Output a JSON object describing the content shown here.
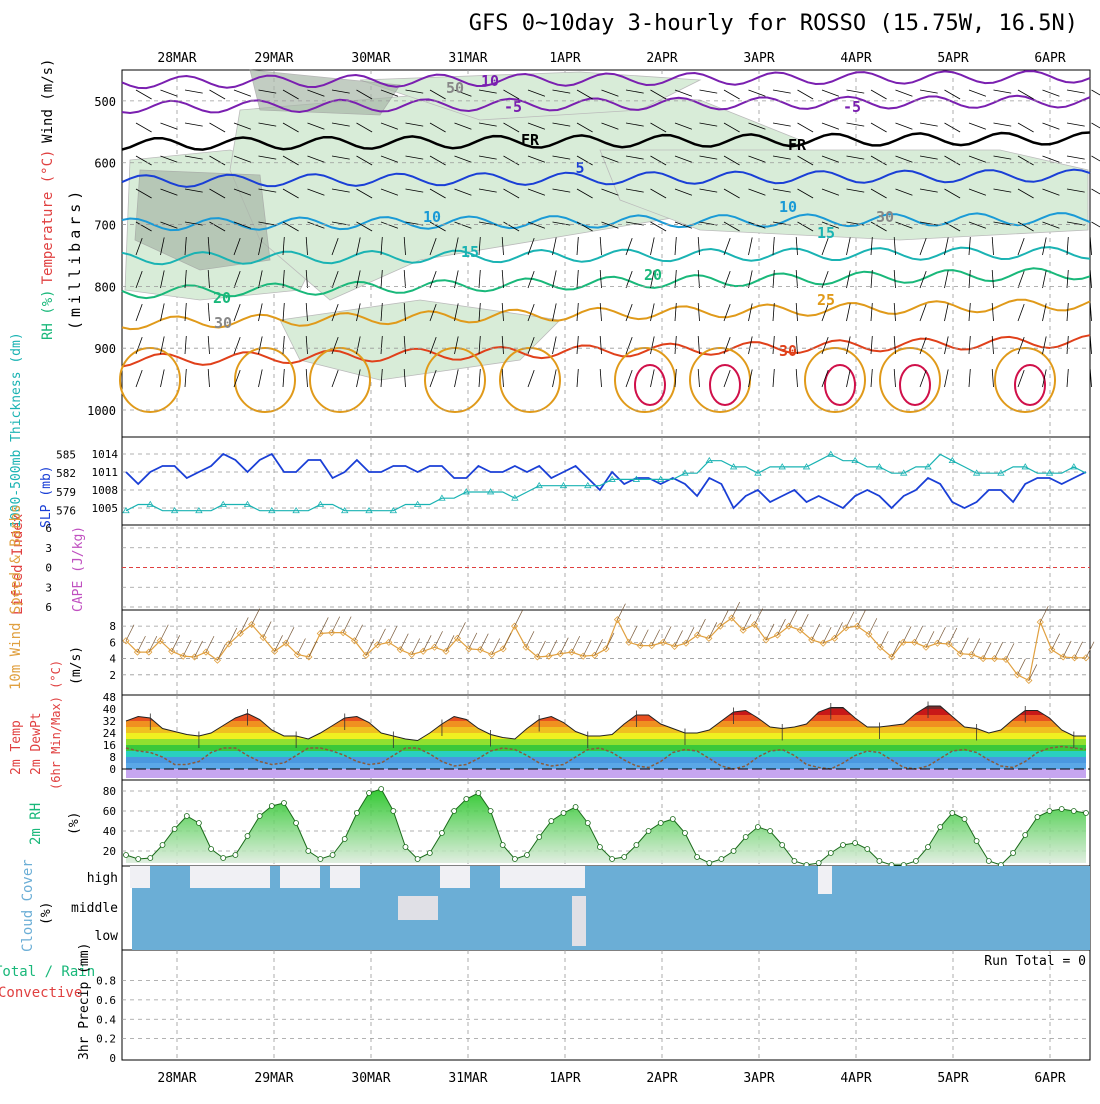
{
  "chart_data": {
    "title": "GFS 0~10day 3-hourly for ROSSO (15.75W, 16.5N)",
    "dates": [
      "28MAR",
      "29MAR",
      "30MAR",
      "31MAR",
      "1APR",
      "2APR",
      "3APR",
      "4APR",
      "5APR",
      "6APR"
    ],
    "colors": {
      "purple": "#7a1fb0",
      "black": "#000000",
      "blue": "#1a3fd6",
      "lightblue": "#1a9ad6",
      "teal": "#1ab3b3",
      "green": "#19b87a",
      "orange": "#e09a1a",
      "red": "#e0401a",
      "crimson": "#d0104a",
      "rh_fill": "#d8ecd8",
      "rh_dark": "#a9b8a9",
      "cloud": "#6baed6",
      "slp": "#1a3fd6",
      "thick": "#1ab3b3",
      "lifted": "#e04040",
      "wind10": "#e0a040"
    },
    "panels": [
      {
        "type": "line",
        "id": "upper_air",
        "ylabels": [
          {
            "text": "RH (%)",
            "color": "#19b87a"
          },
          {
            "text": "Temperature (°C)",
            "color": "#e04040"
          },
          {
            "text": "Wind (m/s)",
            "color": "#000000"
          },
          {
            "text": "(millibars)",
            "color": "#000000"
          }
        ],
        "yticks": [
          "500",
          "600",
          "700",
          "800",
          "900",
          "1000"
        ],
        "contour_labels": [
          "10",
          "-5",
          "-5",
          "FR",
          "FR",
          "5",
          "10",
          "10",
          "15",
          "15",
          "20",
          "20",
          "25",
          "30",
          "50",
          "30",
          "30"
        ],
        "isotherms": [
          {
            "label": "10",
            "level": 470
          },
          {
            "label": "-5",
            "level": 510
          },
          {
            "label": "FR",
            "level": 570
          },
          {
            "label": "5",
            "level": 630
          },
          {
            "label": "10",
            "level": 700
          },
          {
            "label": "15",
            "level": 755
          },
          {
            "label": "20",
            "level": 810
          },
          {
            "label": "25",
            "level": 860
          },
          {
            "label": "30",
            "level": 920
          }
        ]
      },
      {
        "type": "line",
        "id": "slp_thickness",
        "ylabels": [
          {
            "text": "1000-500mb Thickness (dm)",
            "color": "#1ab3b3"
          },
          {
            "text": "SLP (mb)",
            "color": "#1a3fd6"
          }
        ],
        "yticks_left": [
          "585",
          "582",
          "579",
          "576"
        ],
        "yticks_right": [
          "1014",
          "1011",
          "1008",
          "1005"
        ],
        "series": [
          {
            "name": "SLP",
            "values": [
              1011,
              1009,
              1011,
              1012,
              1012,
              1010,
              1011,
              1012,
              1014,
              1013,
              1011,
              1013,
              1014,
              1011,
              1011,
              1013,
              1013,
              1010,
              1011,
              1013,
              1011,
              1011,
              1012,
              1012,
              1011,
              1012,
              1012,
              1010,
              1010,
              1012,
              1011,
              1011,
              1012,
              1011,
              1012,
              1010,
              1011,
              1012,
              1010,
              1008,
              1011,
              1009,
              1010,
              1010,
              1009,
              1010,
              1009,
              1007,
              1010,
              1009,
              1005,
              1007,
              1008,
              1006,
              1007,
              1008,
              1006,
              1007,
              1006,
              1005,
              1007,
              1008,
              1007,
              1005,
              1007,
              1008,
              1010,
              1009,
              1006,
              1005,
              1006,
              1008,
              1008,
              1006,
              1009,
              1010,
              1010,
              1009,
              1010,
              1011
            ]
          },
          {
            "name": "Thickness",
            "values": [
              576,
              577,
              577,
              576,
              576,
              576,
              576,
              576,
              577,
              577,
              577,
              576,
              576,
              576,
              576,
              576,
              577,
              577,
              576,
              576,
              576,
              576,
              576,
              577,
              577,
              577,
              578,
              578,
              579,
              579,
              579,
              579,
              578,
              579,
              580,
              580,
              580,
              580,
              580,
              580,
              581,
              581,
              581,
              581,
              581,
              581,
              582,
              582,
              584,
              584,
              583,
              583,
              582,
              583,
              583,
              583,
              583,
              584,
              585,
              584,
              584,
              583,
              583,
              582,
              582,
              583,
              583,
              585,
              584,
              583,
              582,
              582,
              582,
              583,
              583,
              582,
              582,
              582,
              583,
              582
            ]
          }
        ]
      },
      {
        "type": "line",
        "id": "stability",
        "ylabels": [
          {
            "text": "Lifted Index",
            "color": "#e04040"
          },
          {
            "text": "CAPE (J/kg)",
            "color": "#c050c0"
          }
        ],
        "yticks": [
          "-6",
          "-3",
          "0",
          "3",
          "6"
        ],
        "series": [
          {
            "name": "Lifted Index",
            "values": [
              0
            ]
          }
        ]
      },
      {
        "type": "line",
        "id": "wind10m",
        "ylabels": [
          {
            "text": "10m Wind Speed & Barbs",
            "color": "#e0a040"
          },
          {
            "text": "(m/s)",
            "color": "#000000"
          }
        ],
        "yticks": [
          "8",
          "6",
          "4",
          "2"
        ],
        "series": [
          {
            "name": "10m Wind",
            "values": [
              6.2,
              4.8,
              4.8,
              6.2,
              4.9,
              4.3,
              4.2,
              4.8,
              3.8,
              5.8,
              7.1,
              8.2,
              6.6,
              4.9,
              5.9,
              4.5,
              4.2,
              7.1,
              7.2,
              7.2,
              6.2,
              4.4,
              5.7,
              6.0,
              5.1,
              4.5,
              4.9,
              5.4,
              4.9,
              6.5,
              5.2,
              5.1,
              4.5,
              5.2,
              8.0,
              5.4,
              4.2,
              4.3,
              4.6,
              4.8,
              4.3,
              4.4,
              5.2,
              8.8,
              6.0,
              5.6,
              5.6,
              6.0,
              5.5,
              5.9,
              6.9,
              6.5,
              8.0,
              9.0,
              7.5,
              8.2,
              6.3,
              6.9,
              8.0,
              7.5,
              6.3,
              5.9,
              6.5,
              7.8,
              8.0,
              7.0,
              5.4,
              4.2,
              6.0,
              6.0,
              5.4,
              5.9,
              5.8,
              4.6,
              4.5,
              4.0,
              4.0,
              3.9,
              2.0,
              1.3,
              8.5,
              5.1,
              4.2,
              4.1,
              4.1
            ]
          }
        ]
      },
      {
        "type": "area",
        "id": "temp2m",
        "ylabels": [
          {
            "text": "2m Temp",
            "color": "#e04040"
          },
          {
            "text": "2m DewPt",
            "color": "#e04040"
          },
          {
            "text": "(6hr Min/Max) (°C)",
            "color": "#e04040"
          }
        ],
        "yticks": [
          "48",
          "40",
          "32",
          "24",
          "16",
          "8",
          "0"
        ],
        "series": [
          {
            "name": "2m Temp",
            "values": [
              32,
              35,
              34,
              27,
              25,
              23,
              22,
              24,
              29,
              34,
              37,
              33,
              26,
              22,
              22,
              20,
              24,
              29,
              34,
              35,
              31,
              24,
              22,
              20,
              19,
              24,
              30,
              35,
              33,
              27,
              23,
              21,
              20,
              27,
              33,
              35,
              31,
              25,
              22,
              22,
              23,
              30,
              36,
              36,
              30,
              27,
              24,
              24,
              26,
              32,
              38,
              39,
              34,
              28,
              27,
              28,
              30,
              38,
              41,
              41,
              34,
              28,
              28,
              29,
              30,
              37,
              42,
              42,
              35,
              28,
              27,
              24,
              26,
              33,
              39,
              39,
              34,
              26,
              22,
              22
            ]
          },
          {
            "name": "2m DewPt",
            "values": [
              14,
              12,
              11,
              8,
              3,
              3,
              5,
              11,
              14,
              14,
              9,
              5,
              3,
              4,
              9,
              14,
              14,
              12,
              9,
              5,
              3,
              4,
              9,
              14,
              14,
              10,
              5,
              2,
              3,
              7,
              12,
              14,
              13,
              9,
              4,
              2,
              3,
              8,
              13,
              14,
              11,
              6,
              2,
              1,
              5,
              11,
              13,
              12,
              7,
              2,
              0,
              2,
              8,
              12,
              13,
              9,
              3,
              1,
              0,
              4,
              9,
              12,
              11,
              6,
              1,
              0,
              2,
              7,
              12,
              13,
              11,
              6,
              2,
              1,
              5,
              11,
              14,
              15,
              14,
              13
            ]
          }
        ]
      },
      {
        "type": "area",
        "id": "rh2m",
        "ylabels": [
          {
            "text": "2m RH",
            "color": "#19b87a"
          },
          {
            "text": "(%)",
            "color": "#000000"
          }
        ],
        "yticks": [
          "80",
          "60",
          "40",
          "20"
        ],
        "series": [
          {
            "name": "2m RH",
            "values": [
              16,
              12,
              13,
              26,
              42,
              55,
              48,
              22,
              13,
              16,
              35,
              55,
              65,
              68,
              48,
              20,
              12,
              16,
              32,
              58,
              78,
              82,
              60,
              24,
              12,
              18,
              38,
              60,
              72,
              78,
              60,
              26,
              12,
              16,
              34,
              50,
              58,
              64,
              48,
              24,
              12,
              14,
              26,
              40,
              48,
              52,
              38,
              14,
              8,
              12,
              20,
              34,
              44,
              40,
              26,
              10,
              6,
              8,
              18,
              26,
              28,
              22,
              10,
              6,
              6,
              10,
              24,
              44,
              58,
              52,
              30,
              10,
              6,
              18,
              36,
              54,
              60,
              62,
              60,
              58
            ]
          }
        ]
      },
      {
        "type": "area",
        "id": "cloud",
        "ylabels": [
          {
            "text": "Cloud Cover",
            "color": "#6baed6"
          },
          {
            "text": "(%)",
            "color": "#000000"
          }
        ],
        "ytick_labels": [
          "high",
          "middle",
          "low"
        ]
      },
      {
        "type": "bar",
        "id": "precip",
        "ylabels": [
          {
            "text": "Total / Rain",
            "color": "#19b87a"
          },
          {
            "text": "Convective",
            "color": "#e04040"
          },
          {
            "text": "3hr Precip (mm)",
            "color": "#000000"
          }
        ],
        "yticks": [
          "0.8",
          "0.6",
          "0.4",
          "0.2",
          "0"
        ],
        "run_total_text": "Run Total = 0",
        "series": [
          {
            "name": "Total",
            "values": [
              0
            ]
          }
        ]
      }
    ]
  }
}
